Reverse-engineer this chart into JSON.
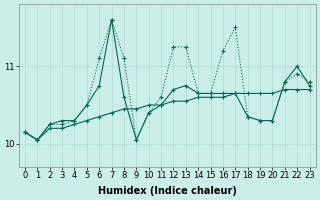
{
  "xlabel": "Humidex (Indice chaleur)",
  "bg_color": "#cceee8",
  "grid_color": "#aaddcc",
  "line_color": "#006655",
  "x_values": [
    0,
    1,
    2,
    3,
    4,
    5,
    6,
    7,
    8,
    9,
    10,
    11,
    12,
    13,
    14,
    15,
    16,
    17,
    18,
    19,
    20,
    21,
    22,
    23
  ],
  "line_flat_y": [
    10.15,
    10.05,
    10.2,
    10.2,
    10.25,
    10.3,
    10.35,
    10.4,
    10.45,
    10.45,
    10.5,
    10.5,
    10.55,
    10.55,
    10.6,
    10.6,
    10.6,
    10.65,
    10.65,
    10.65,
    10.65,
    10.7,
    10.7,
    10.7
  ],
  "line_dotted_y": [
    10.15,
    10.05,
    10.25,
    10.25,
    10.3,
    10.5,
    11.1,
    11.6,
    11.1,
    10.05,
    10.4,
    10.6,
    11.25,
    11.25,
    10.65,
    10.65,
    11.2,
    11.5,
    10.35,
    10.3,
    10.3,
    10.8,
    10.9,
    10.8
  ],
  "line_solid_y": [
    10.15,
    10.05,
    10.25,
    10.3,
    10.3,
    10.5,
    10.75,
    11.6,
    10.6,
    10.05,
    10.4,
    10.5,
    10.7,
    10.75,
    10.65,
    10.65,
    10.65,
    10.65,
    10.35,
    10.3,
    10.3,
    10.8,
    11.0,
    10.75
  ],
  "ylim": [
    9.7,
    11.8
  ],
  "yticks": [
    10,
    11
  ],
  "marker": "+",
  "markersize": 3,
  "linewidth": 0.8,
  "axis_fontsize": 7,
  "tick_fontsize": 6
}
